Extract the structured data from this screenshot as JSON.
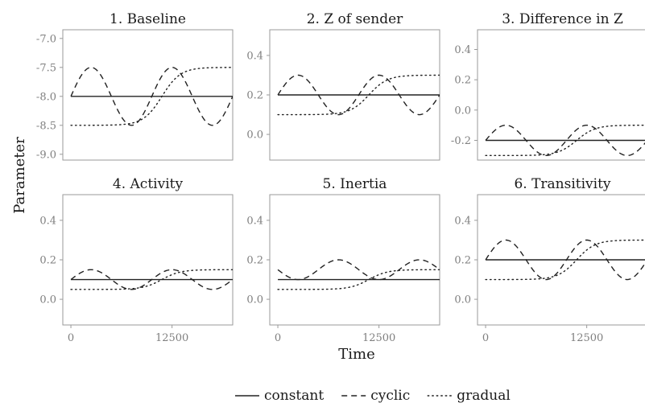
{
  "chart_data": {
    "type": "line",
    "xlabel": "Time",
    "ylabel": "Parameter",
    "x_ticks": [
      0,
      12500
    ],
    "xlim": [
      -1000,
      20000
    ],
    "legend": {
      "placement": "bottom",
      "entries": [
        {
          "name": "constant",
          "style": "solid"
        },
        {
          "name": "cyclic",
          "style": "dashed"
        },
        {
          "name": "gradual",
          "style": "dotted"
        }
      ]
    },
    "panels": [
      {
        "title": "1. Baseline",
        "ylim": [
          -9.1,
          -6.85
        ],
        "y_ticks": [
          -9.0,
          -8.5,
          -8.0,
          -7.5,
          -7.0
        ],
        "y_tick_labels": [
          "-9.0",
          "-8.5",
          "-8.0",
          "-7.5",
          "-7.0"
        ],
        "series": [
          {
            "name": "constant",
            "x": [
              0,
              20000
            ],
            "y": [
              -8.0,
              -8.0
            ]
          },
          {
            "name": "cyclic",
            "x": [
              0,
              2500,
              5000,
              7500,
              10000,
              12500,
              15000,
              17500,
              20000
            ],
            "y": [
              -8.0,
              -7.5,
              -8.0,
              -8.5,
              -8.0,
              -7.5,
              -8.0,
              -8.5,
              -8.0
            ]
          },
          {
            "name": "gradual",
            "x": [
              0,
              5000,
              7500,
              10000,
              12500,
              15000,
              17500,
              20000
            ],
            "y": [
              -8.5,
              -8.5,
              -8.47,
              -8.25,
              -7.75,
              -7.53,
              -7.5,
              -7.5
            ]
          }
        ]
      },
      {
        "title": "2. Z of sender",
        "ylim": [
          -0.13,
          0.53
        ],
        "y_ticks": [
          0.0,
          0.2,
          0.4
        ],
        "y_tick_labels": [
          "0.0",
          "0.2",
          "0.4"
        ],
        "series": [
          {
            "name": "constant",
            "x": [
              0,
              20000
            ],
            "y": [
              0.2,
              0.2
            ]
          },
          {
            "name": "cyclic",
            "x": [
              0,
              2500,
              5000,
              7500,
              10000,
              12500,
              15000,
              17500,
              20000
            ],
            "y": [
              0.2,
              0.3,
              0.2,
              0.1,
              0.2,
              0.3,
              0.2,
              0.1,
              0.2
            ]
          },
          {
            "name": "gradual",
            "x": [
              0,
              5000,
              7500,
              10000,
              12500,
              15000,
              17500,
              20000
            ],
            "y": [
              0.1,
              0.1,
              0.105,
              0.15,
              0.25,
              0.295,
              0.3,
              0.3
            ]
          }
        ]
      },
      {
        "title": "3. Difference in Z",
        "ylim": [
          -0.33,
          0.53
        ],
        "y_ticks": [
          -0.2,
          0.0,
          0.2,
          0.4
        ],
        "y_tick_labels": [
          "-0.2",
          "0.0",
          "0.2",
          "0.4"
        ],
        "series": [
          {
            "name": "constant",
            "x": [
              0,
              20000
            ],
            "y": [
              -0.2,
              -0.2
            ]
          },
          {
            "name": "cyclic",
            "x": [
              0,
              2500,
              5000,
              7500,
              10000,
              12500,
              15000,
              17500,
              20000
            ],
            "y": [
              -0.2,
              -0.1,
              -0.2,
              -0.3,
              -0.2,
              -0.1,
              -0.2,
              -0.3,
              -0.2
            ]
          },
          {
            "name": "gradual",
            "x": [
              0,
              5000,
              7500,
              10000,
              12500,
              15000,
              17500,
              20000
            ],
            "y": [
              -0.3,
              -0.3,
              -0.295,
              -0.25,
              -0.15,
              -0.105,
              -0.1,
              -0.1
            ]
          }
        ]
      },
      {
        "title": "4. Activity",
        "ylim": [
          -0.13,
          0.53
        ],
        "y_ticks": [
          0.0,
          0.2,
          0.4
        ],
        "y_tick_labels": [
          "0.0",
          "0.2",
          "0.4"
        ],
        "series": [
          {
            "name": "constant",
            "x": [
              0,
              20000
            ],
            "y": [
              0.1,
              0.1
            ]
          },
          {
            "name": "cyclic",
            "x": [
              0,
              2500,
              5000,
              7500,
              10000,
              12500,
              15000,
              17500,
              20000
            ],
            "y": [
              0.1,
              0.15,
              0.1,
              0.05,
              0.1,
              0.15,
              0.1,
              0.05,
              0.1
            ]
          },
          {
            "name": "gradual",
            "x": [
              0,
              5000,
              7500,
              10000,
              12500,
              15000,
              17500,
              20000
            ],
            "y": [
              0.05,
              0.05,
              0.053,
              0.075,
              0.125,
              0.147,
              0.15,
              0.15
            ]
          }
        ]
      },
      {
        "title": "5. Inertia",
        "ylim": [
          -0.13,
          0.53
        ],
        "y_ticks": [
          0.0,
          0.2,
          0.4
        ],
        "y_tick_labels": [
          "0.0",
          "0.2",
          "0.4"
        ],
        "series": [
          {
            "name": "constant",
            "x": [
              0,
              20000
            ],
            "y": [
              0.1,
              0.1
            ]
          },
          {
            "name": "cyclic",
            "x": [
              0,
              2500,
              5000,
              7500,
              10000,
              12500,
              15000,
              17500,
              20000
            ],
            "y": [
              0.15,
              0.1,
              0.05,
              0.1,
              0.15,
              0.1,
              0.05,
              0.1,
              0.15
            ]
          },
          {
            "name": "gradual",
            "x": [
              0,
              5000,
              7500,
              10000,
              12500,
              15000,
              17500,
              20000
            ],
            "y": [
              0.05,
              0.05,
              0.053,
              0.075,
              0.125,
              0.147,
              0.15,
              0.15
            ]
          }
        ]
      },
      {
        "title": "6. Transitivity",
        "ylim": [
          -0.13,
          0.53
        ],
        "y_ticks": [
          0.0,
          0.2,
          0.4
        ],
        "y_tick_labels": [
          "0.0",
          "0.2",
          "0.4"
        ],
        "series": [
          {
            "name": "constant",
            "x": [
              0,
              20000
            ],
            "y": [
              0.2,
              0.2
            ]
          },
          {
            "name": "cyclic",
            "x": [
              0,
              2500,
              5000,
              7500,
              10000,
              12500,
              15000,
              17500,
              20000
            ],
            "y": [
              0.2,
              0.3,
              0.2,
              0.1,
              0.2,
              0.3,
              0.2,
              0.1,
              0.2
            ]
          },
          {
            "name": "gradual",
            "x": [
              0,
              5000,
              7500,
              10000,
              12500,
              15000,
              17500,
              20000
            ],
            "y": [
              0.1,
              0.1,
              0.105,
              0.15,
              0.25,
              0.295,
              0.3,
              0.3
            ]
          }
        ]
      }
    ]
  }
}
